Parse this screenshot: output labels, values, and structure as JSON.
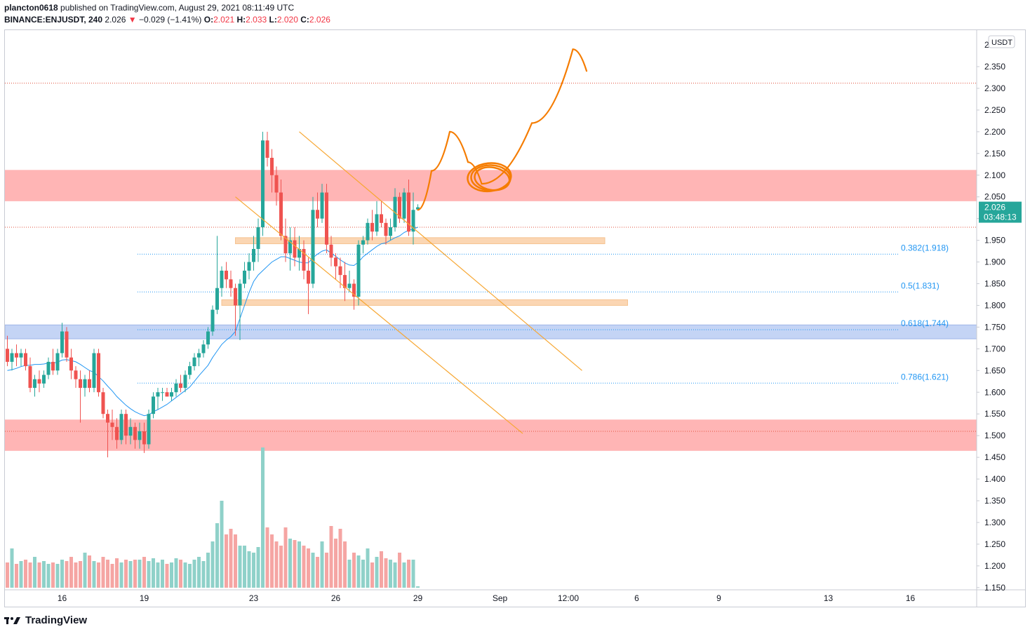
{
  "header": {
    "author": "plancton0618",
    "published_text": "published on TradingView.com, August 29, 2021 08:11:49 UTC",
    "symbol": "BINANCE:ENJUSDT, 240",
    "last": "2.026",
    "change": "−0.029 (−1.41%)",
    "o_label": "O:",
    "o": "2.021",
    "h_label": "H:",
    "h": "2.033",
    "l_label": "L:",
    "l": "2.020",
    "c_label": "C:",
    "c": "2.026"
  },
  "footer": {
    "brand": "TradingView"
  },
  "chart_data": {
    "type": "candlestick",
    "symbol": "BINANCE:ENJUSDT",
    "interval": "240",
    "currency_label": "USDT",
    "y_ticks": [
      "2.350",
      "2.300",
      "2.250",
      "2.200",
      "2.150",
      "2.100",
      "2.050",
      "2.000",
      "1.950",
      "1.900",
      "1.850",
      "1.800",
      "1.750",
      "1.700",
      "1.650",
      "1.600",
      "1.550",
      "1.500",
      "1.450",
      "1.400",
      "1.350",
      "1.300",
      "1.250",
      "1.200",
      "1.150"
    ],
    "y_top_partial": "2",
    "ylim": [
      1.14,
      2.39
    ],
    "x_ticks": [
      {
        "label": "16",
        "bar": 12
      },
      {
        "label": "19",
        "bar": 30
      },
      {
        "label": "23",
        "bar": 54
      },
      {
        "label": "26",
        "bar": 72
      },
      {
        "label": "29",
        "bar": 90
      },
      {
        "label": "Sep",
        "bar": 108
      },
      {
        "label": "12:00",
        "bar": 123
      },
      {
        "label": "6",
        "bar": 138
      },
      {
        "label": "9",
        "bar": 156
      },
      {
        "label": "13",
        "bar": 180
      },
      {
        "label": "16",
        "bar": 198
      }
    ],
    "price_badge": {
      "price": "2.026",
      "countdown": "03:48:13",
      "color": "#26a69a"
    },
    "colors": {
      "up": "#26a69a",
      "down": "#ef5350",
      "vol_up": "#8fd1c9",
      "vol_down": "#f5a5a3",
      "ma": "#2196f3",
      "fib": "#2196f3",
      "channel": "#f7a733",
      "drawing": "#f57c00"
    },
    "candles": [
      [
        1.7,
        1.73,
        1.66,
        1.67
      ],
      [
        1.67,
        1.7,
        1.65,
        1.69
      ],
      [
        1.69,
        1.71,
        1.66,
        1.68
      ],
      [
        1.68,
        1.7,
        1.66,
        1.69
      ],
      [
        1.69,
        1.7,
        1.65,
        1.66
      ],
      [
        1.66,
        1.68,
        1.6,
        1.61
      ],
      [
        1.61,
        1.64,
        1.59,
        1.63
      ],
      [
        1.63,
        1.65,
        1.6,
        1.62
      ],
      [
        1.62,
        1.65,
        1.61,
        1.64
      ],
      [
        1.64,
        1.68,
        1.63,
        1.67
      ],
      [
        1.67,
        1.7,
        1.64,
        1.65
      ],
      [
        1.65,
        1.7,
        1.64,
        1.69
      ],
      [
        1.69,
        1.76,
        1.68,
        1.74
      ],
      [
        1.74,
        1.75,
        1.67,
        1.68
      ],
      [
        1.68,
        1.7,
        1.63,
        1.65
      ],
      [
        1.65,
        1.66,
        1.61,
        1.63
      ],
      [
        1.63,
        1.65,
        1.53,
        1.61
      ],
      [
        1.61,
        1.64,
        1.59,
        1.63
      ],
      [
        1.63,
        1.65,
        1.6,
        1.61
      ],
      [
        1.61,
        1.7,
        1.6,
        1.69
      ],
      [
        1.69,
        1.7,
        1.59,
        1.6
      ],
      [
        1.6,
        1.61,
        1.54,
        1.55
      ],
      [
        1.55,
        1.56,
        1.45,
        1.53
      ],
      [
        1.53,
        1.56,
        1.49,
        1.52
      ],
      [
        1.52,
        1.54,
        1.47,
        1.49
      ],
      [
        1.49,
        1.56,
        1.48,
        1.55
      ],
      [
        1.55,
        1.56,
        1.48,
        1.5
      ],
      [
        1.5,
        1.54,
        1.48,
        1.52
      ],
      [
        1.52,
        1.53,
        1.47,
        1.49
      ],
      [
        1.49,
        1.53,
        1.47,
        1.51
      ],
      [
        1.51,
        1.53,
        1.46,
        1.48
      ],
      [
        1.48,
        1.56,
        1.47,
        1.55
      ],
      [
        1.55,
        1.6,
        1.54,
        1.59
      ],
      [
        1.59,
        1.61,
        1.56,
        1.6
      ],
      [
        1.6,
        1.61,
        1.58,
        1.6
      ],
      [
        1.6,
        1.61,
        1.59,
        1.59
      ],
      [
        1.59,
        1.61,
        1.58,
        1.6
      ],
      [
        1.6,
        1.63,
        1.59,
        1.62
      ],
      [
        1.62,
        1.64,
        1.6,
        1.61
      ],
      [
        1.61,
        1.65,
        1.6,
        1.64
      ],
      [
        1.64,
        1.67,
        1.63,
        1.66
      ],
      [
        1.66,
        1.69,
        1.65,
        1.68
      ],
      [
        1.68,
        1.7,
        1.66,
        1.69
      ],
      [
        1.69,
        1.72,
        1.68,
        1.71
      ],
      [
        1.71,
        1.75,
        1.7,
        1.74
      ],
      [
        1.74,
        1.8,
        1.73,
        1.79
      ],
      [
        1.79,
        1.96,
        1.78,
        1.84
      ],
      [
        1.84,
        1.89,
        1.82,
        1.88
      ],
      [
        1.88,
        1.9,
        1.84,
        1.86
      ],
      [
        1.86,
        1.88,
        1.82,
        1.84
      ],
      [
        1.84,
        1.85,
        1.73,
        1.8
      ],
      [
        1.8,
        1.86,
        1.72,
        1.85
      ],
      [
        1.85,
        1.9,
        1.84,
        1.88
      ],
      [
        1.88,
        1.92,
        1.86,
        1.9
      ],
      [
        1.9,
        1.96,
        1.88,
        1.93
      ],
      [
        1.93,
        2.0,
        1.9,
        1.98
      ],
      [
        1.98,
        2.2,
        1.96,
        2.18
      ],
      [
        2.18,
        2.2,
        2.12,
        2.14
      ],
      [
        2.14,
        2.16,
        2.06,
        2.1
      ],
      [
        2.1,
        2.12,
        2.03,
        2.06
      ],
      [
        2.06,
        2.09,
        1.95,
        1.96
      ],
      [
        1.96,
        2.0,
        1.9,
        1.92
      ],
      [
        1.92,
        1.98,
        1.88,
        1.95
      ],
      [
        1.95,
        1.98,
        1.89,
        1.91
      ],
      [
        1.91,
        1.96,
        1.88,
        1.93
      ],
      [
        1.93,
        1.95,
        1.86,
        1.88
      ],
      [
        1.88,
        1.91,
        1.78,
        1.85
      ],
      [
        1.85,
        2.05,
        1.84,
        2.02
      ],
      [
        2.02,
        2.06,
        1.98,
        2.0
      ],
      [
        2.0,
        2.08,
        1.99,
        2.06
      ],
      [
        2.06,
        2.08,
        1.92,
        1.94
      ],
      [
        1.94,
        1.96,
        1.89,
        1.91
      ],
      [
        1.91,
        1.92,
        1.86,
        1.89
      ],
      [
        1.89,
        1.91,
        1.84,
        1.87
      ],
      [
        1.87,
        1.9,
        1.81,
        1.84
      ],
      [
        1.84,
        1.88,
        1.83,
        1.85
      ],
      [
        1.85,
        1.86,
        1.79,
        1.82
      ],
      [
        1.82,
        1.95,
        1.8,
        1.94
      ],
      [
        1.94,
        1.96,
        1.92,
        1.95
      ],
      [
        1.95,
        2.0,
        1.94,
        1.99
      ],
      [
        1.99,
        2.02,
        1.95,
        1.97
      ],
      [
        1.97,
        2.04,
        1.96,
        2.01
      ],
      [
        2.01,
        2.04,
        1.98,
        1.99
      ],
      [
        1.99,
        2.0,
        1.94,
        1.96
      ],
      [
        1.96,
        2.0,
        1.95,
        1.98
      ],
      [
        1.98,
        2.07,
        1.97,
        2.05
      ],
      [
        2.05,
        2.06,
        1.99,
        2.0
      ],
      [
        2.0,
        2.07,
        1.99,
        2.06
      ],
      [
        2.06,
        2.09,
        1.96,
        1.97
      ],
      [
        1.97,
        2.06,
        1.94,
        2.02
      ],
      [
        2.021,
        2.033,
        2.02,
        2.026
      ]
    ],
    "volumes": [
      0.18,
      0.28,
      0.17,
      0.19,
      0.2,
      0.18,
      0.22,
      0.18,
      0.19,
      0.17,
      0.18,
      0.17,
      0.2,
      0.19,
      0.22,
      0.18,
      0.19,
      0.25,
      0.23,
      0.19,
      0.18,
      0.22,
      0.2,
      0.17,
      0.21,
      0.18,
      0.2,
      0.19,
      0.2,
      0.2,
      0.22,
      0.19,
      0.21,
      0.18,
      0.2,
      0.17,
      0.18,
      0.21,
      0.2,
      0.18,
      0.17,
      0.2,
      0.22,
      0.19,
      0.25,
      0.33,
      0.46,
      0.62,
      0.38,
      0.42,
      0.38,
      0.3,
      0.3,
      0.26,
      0.25,
      0.29,
      1.0,
      0.43,
      0.38,
      0.33,
      0.3,
      0.43,
      0.35,
      0.34,
      0.33,
      0.3,
      0.28,
      0.25,
      0.22,
      0.33,
      0.25,
      0.44,
      0.35,
      0.42,
      0.33,
      0.2,
      0.25,
      0.23,
      0.2,
      0.28,
      0.18,
      0.22,
      0.26,
      0.21,
      0.2,
      0.18,
      0.25,
      0.18,
      0.2,
      0.2,
      0.01
    ],
    "ma": [
      1.65,
      1.652,
      1.655,
      1.659,
      1.662,
      1.662,
      1.664,
      1.664,
      1.665,
      1.667,
      1.667,
      1.669,
      1.674,
      1.675,
      1.673,
      1.67,
      1.664,
      1.657,
      1.65,
      1.646,
      1.636,
      1.626,
      1.614,
      1.603,
      1.59,
      1.58,
      1.57,
      1.562,
      1.555,
      1.55,
      1.546,
      1.548,
      1.555,
      1.56,
      1.566,
      1.572,
      1.58,
      1.588,
      1.596,
      1.604,
      1.612,
      1.625,
      1.638,
      1.65,
      1.662,
      1.68,
      1.695,
      1.71,
      1.72,
      1.728,
      1.74,
      1.77,
      1.8,
      1.83,
      1.855,
      1.87,
      1.88,
      1.89,
      1.9,
      1.906,
      1.912,
      1.912,
      1.908,
      1.904,
      1.9,
      1.898,
      1.898,
      1.91,
      1.918,
      1.925,
      1.928,
      1.92,
      1.913,
      1.905,
      1.898,
      1.893,
      1.892,
      1.9,
      1.912,
      1.92,
      1.928,
      1.936,
      1.942,
      1.944,
      1.95,
      1.956,
      1.96,
      1.968,
      1.973,
      1.976,
      1.98
    ],
    "fib_levels": [
      {
        "label": "0.382(1.918)",
        "price": 1.918
      },
      {
        "label": "0.5(1.831)",
        "price": 1.831
      },
      {
        "label": "0.618(1.744)",
        "price": 1.744
      },
      {
        "label": "0.786(1.621)",
        "price": 1.621
      }
    ],
    "resistance_zones": [
      {
        "from": 2.04,
        "to": 2.112,
        "color": "#ffb5b5"
      },
      {
        "from": 1.465,
        "to": 1.537,
        "color": "#ffb5b5"
      }
    ],
    "support_zone": {
      "from": 1.723,
      "to": 1.755,
      "color": "#c4d4f5"
    },
    "minor_zones": [
      {
        "from": 1.942,
        "to": 1.956,
        "start_bar": 50,
        "end_bar": 131
      },
      {
        "from": 1.8,
        "to": 1.813,
        "start_bar": 47,
        "end_bar": 136
      }
    ],
    "dotted_lines": [
      {
        "price": 2.312
      },
      {
        "price": 1.98
      },
      {
        "price": 1.51
      }
    ],
    "channel_lines": [
      {
        "from_bar": 64,
        "from_price": 2.2,
        "to_bar": 126,
        "to_price": 1.65
      },
      {
        "from_bar": 50,
        "from_price": 2.05,
        "to_bar": 113,
        "to_price": 1.505
      }
    ],
    "arrow_path": [
      [
        90,
        2.02
      ],
      [
        93,
        2.11
      ],
      [
        97,
        2.2
      ],
      [
        101,
        2.13
      ],
      [
        104,
        2.08
      ],
      [
        115,
        2.22
      ],
      [
        124,
        2.39
      ],
      [
        127,
        2.34
      ]
    ],
    "circle": {
      "bar": 106,
      "price": 2.094
    }
  }
}
